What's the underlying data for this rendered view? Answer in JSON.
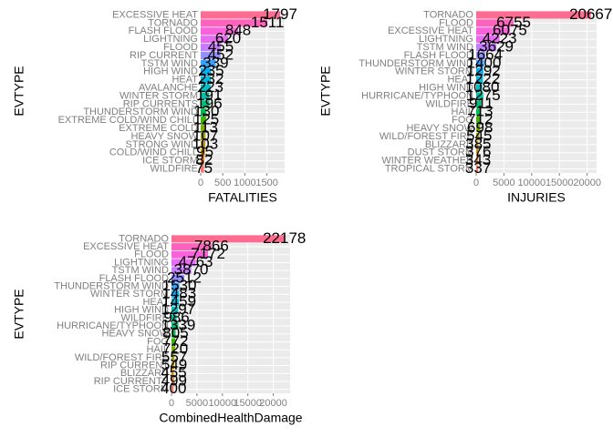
{
  "chart_data": [
    {
      "type": "bar",
      "orientation": "horizontal",
      "xlabel": "FATALITIES",
      "ylabel": "EVTYPE",
      "categories": [
        "EXCESSIVE HEAT",
        "TORNADO",
        "FLASH FLOOD",
        "LIGHTNING",
        "FLOOD",
        "RIP CURRENT",
        "TSTM WIND",
        "HIGH WIND",
        "HEAT",
        "AVALANCHE",
        "WINTER STORM",
        "RIP CURRENTS",
        "THUNDERSTORM WIND",
        "EXTREME COLD/WIND CHILL",
        "EXTREME COLD",
        "HEAVY SNOW",
        "STRONG WIND",
        "COLD/WIND CHILL",
        "ICE STORM",
        "WILDFIRE"
      ],
      "values": [
        1797,
        1511,
        848,
        620,
        455,
        452,
        339,
        235,
        232,
        223,
        191,
        196,
        130,
        125,
        113,
        107,
        103,
        95,
        82,
        75
      ],
      "colors": [
        "#FF6C91",
        "#FF62BC",
        "#FA62DB",
        "#E76BF3",
        "#C77CFF",
        "#9590FF",
        "#35A2FF",
        "#00B0F6",
        "#00BAE0",
        "#00BFC4",
        "#00C1A3",
        "#00BF7D",
        "#00BB4E",
        "#39B600",
        "#7CAE00",
        "#A3A500",
        "#C09B00",
        "#D89000",
        "#EA8331",
        "#F8766D"
      ],
      "xlim": [
        0,
        1900
      ],
      "xticks": [
        0,
        500,
        1000,
        1500
      ],
      "grid": true
    },
    {
      "type": "bar",
      "orientation": "horizontal",
      "xlabel": "INJURIES",
      "ylabel": "EVTYPE",
      "categories": [
        "TORNADO",
        "FLOOD",
        "EXCESSIVE HEAT",
        "LIGHTNING",
        "TSTM WIND",
        "FLASH FLOOD",
        "THUNDERSTORM WIND",
        "WINTER STORM",
        "HEAT",
        "HIGH WIND",
        "HURRICANE/TYPHOON",
        "WILDFIRE",
        "HAIL",
        "FOG",
        "HEAVY SNOW",
        "WILD/FOREST FIRE",
        "BLIZZARD",
        "DUST STORM",
        "WINTER WEATHER",
        "TROPICAL STORM"
      ],
      "values": [
        20667,
        6755,
        6075,
        4223,
        3629,
        1664,
        1400,
        1292,
        1222,
        1080,
        1275,
        911,
        713,
        712,
        698,
        545,
        385,
        376,
        343,
        337
      ],
      "colors": [
        "#FF6C91",
        "#FF62BC",
        "#FA62DB",
        "#E76BF3",
        "#C77CFF",
        "#9590FF",
        "#35A2FF",
        "#00B0F6",
        "#00BAE0",
        "#00BFC4",
        "#00C1A3",
        "#00BF7D",
        "#00BB4E",
        "#39B600",
        "#7CAE00",
        "#A3A500",
        "#C09B00",
        "#D89000",
        "#EA8331",
        "#F8766D"
      ],
      "xlim": [
        0,
        21700
      ],
      "xticks": [
        0,
        5000,
        10000,
        15000,
        20000
      ],
      "grid": true
    },
    {
      "type": "bar",
      "orientation": "horizontal",
      "xlabel": "CombinedHealthDamage",
      "ylabel": "EVTYPE",
      "categories": [
        "TORNADO",
        "EXCESSIVE HEAT",
        "FLOOD",
        "LIGHTNING",
        "TSTM WIND",
        "FLASH FLOOD",
        "THUNDERSTORM WIND",
        "WINTER STORM",
        "HEAT",
        "HIGH WIND",
        "WILDFIRE",
        "HURRICANE/TYPHOON",
        "HEAVY SNOW",
        "FOG",
        "HAIL",
        "WILD/FOREST FIRE",
        "RIP CURRENT",
        "BLIZZARD",
        "RIP CURRENTS",
        "ICE STORM"
      ],
      "values": [
        22178,
        7866,
        7172,
        4763,
        3870,
        2512,
        1530,
        1483,
        1459,
        1297,
        986,
        1339,
        805,
        772,
        720,
        557,
        549,
        455,
        499,
        400
      ],
      "colors": [
        "#FF6C91",
        "#FF62BC",
        "#FA62DB",
        "#E76BF3",
        "#C77CFF",
        "#9590FF",
        "#35A2FF",
        "#00B0F6",
        "#00BAE0",
        "#00BFC4",
        "#00C1A3",
        "#00BF7D",
        "#00BB4E",
        "#39B600",
        "#7CAE00",
        "#A3A500",
        "#C09B00",
        "#D89000",
        "#EA8331",
        "#F8766D"
      ],
      "xlim": [
        0,
        23300
      ],
      "xticks": [
        0,
        5000,
        10000,
        15000,
        20000
      ],
      "grid": true
    }
  ]
}
